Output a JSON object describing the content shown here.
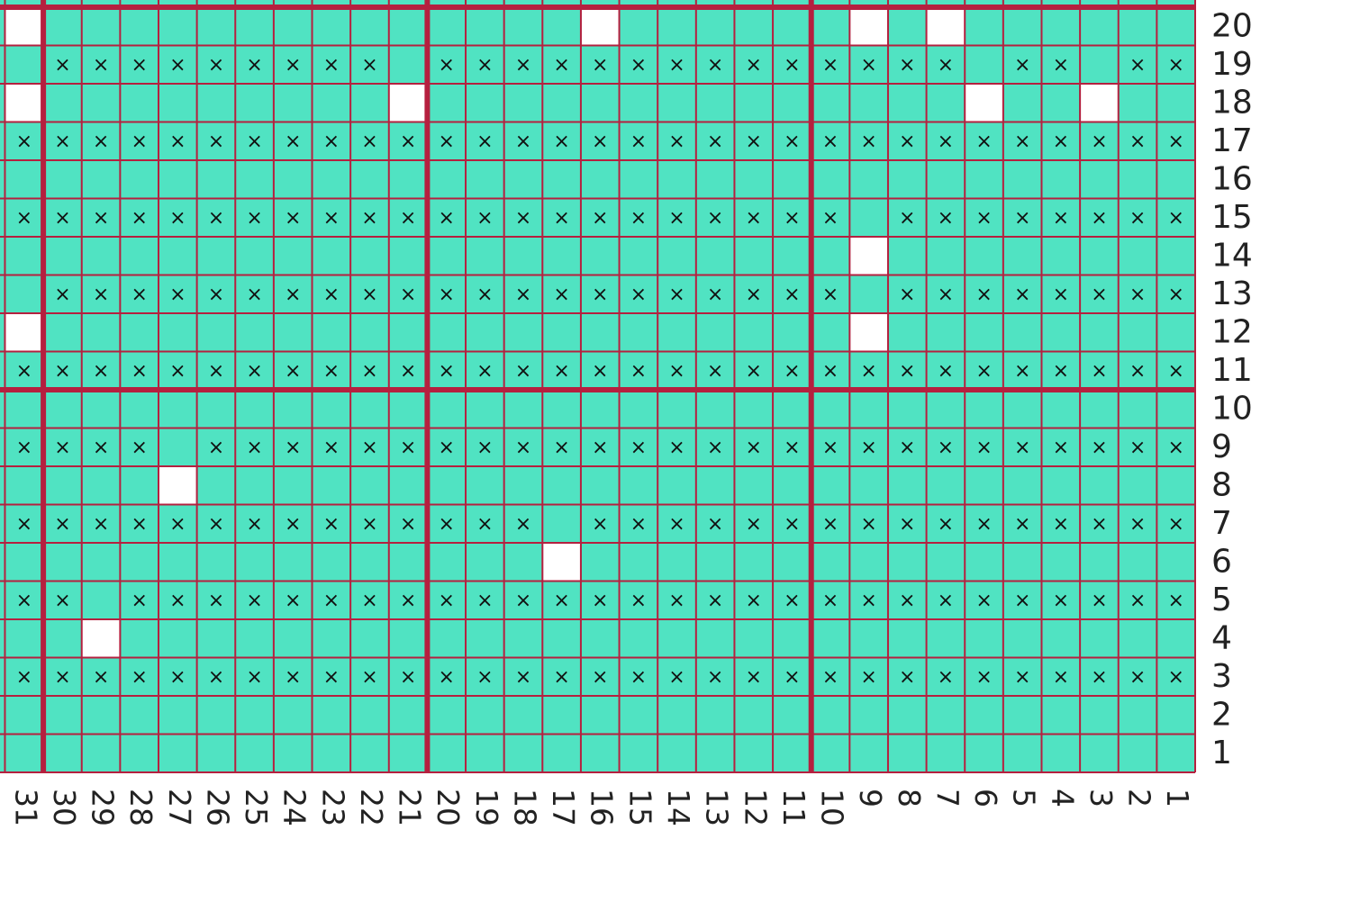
{
  "cross_symbol": "×",
  "columns": [
    "31",
    "30",
    "29",
    "28",
    "27",
    "26",
    "25",
    "24",
    "23",
    "22",
    "21",
    "20",
    "19",
    "18",
    "17",
    "16",
    "15",
    "14",
    "13",
    "12",
    "11",
    "10",
    "9",
    "8",
    "7",
    "6",
    "5",
    "4",
    "3",
    "2",
    "1"
  ],
  "rows": [
    {
      "label": "20",
      "blank_columns": [
        31,
        16,
        9,
        7
      ]
    },
    {
      "label": "19",
      "cross_columns": [
        30,
        29,
        28,
        27,
        26,
        25,
        24,
        23,
        22,
        20,
        19,
        18,
        17,
        16,
        15,
        14,
        13,
        12,
        11,
        10,
        9,
        8,
        7,
        5,
        4,
        2,
        1
      ]
    },
    {
      "label": "18",
      "blank_columns": [
        31,
        21,
        6,
        3
      ]
    },
    {
      "label": "17",
      "cross_columns": [
        31,
        30,
        29,
        28,
        27,
        26,
        25,
        24,
        23,
        22,
        21,
        20,
        19,
        18,
        17,
        16,
        15,
        14,
        13,
        12,
        11,
        10,
        9,
        8,
        7,
        6,
        5,
        4,
        3,
        2,
        1
      ]
    },
    {
      "label": "16"
    },
    {
      "label": "15",
      "cross_columns": [
        31,
        30,
        29,
        28,
        27,
        26,
        25,
        24,
        23,
        22,
        21,
        20,
        19,
        18,
        17,
        16,
        15,
        14,
        13,
        12,
        11,
        10,
        8,
        7,
        6,
        5,
        4,
        3,
        2,
        1
      ]
    },
    {
      "label": "14",
      "blank_columns": [
        9
      ]
    },
    {
      "label": "13",
      "cross_columns": [
        30,
        29,
        28,
        27,
        26,
        25,
        24,
        23,
        22,
        21,
        20,
        19,
        18,
        17,
        16,
        15,
        14,
        13,
        12,
        11,
        10,
        8,
        7,
        6,
        5,
        4,
        3,
        2,
        1
      ]
    },
    {
      "label": "12",
      "blank_columns": [
        31,
        9
      ]
    },
    {
      "label": "11",
      "cross_columns": [
        31,
        30,
        29,
        28,
        27,
        26,
        25,
        24,
        23,
        22,
        21,
        20,
        19,
        18,
        17,
        16,
        15,
        14,
        13,
        12,
        11,
        10,
        9,
        8,
        7,
        6,
        5,
        4,
        3,
        2,
        1
      ]
    },
    {
      "label": "10"
    },
    {
      "label": "9",
      "cross_columns": [
        31,
        30,
        29,
        28,
        26,
        25,
        24,
        23,
        22,
        21,
        20,
        19,
        18,
        17,
        16,
        15,
        14,
        13,
        12,
        11,
        10,
        9,
        8,
        7,
        6,
        5,
        4,
        3,
        2,
        1
      ]
    },
    {
      "label": "8",
      "blank_columns": [
        27
      ]
    },
    {
      "label": "7",
      "cross_columns": [
        31,
        30,
        29,
        28,
        27,
        26,
        25,
        24,
        23,
        22,
        21,
        20,
        19,
        18,
        16,
        15,
        14,
        13,
        12,
        11,
        10,
        9,
        8,
        7,
        6,
        5,
        4,
        3,
        2,
        1
      ]
    },
    {
      "label": "6",
      "blank_columns": [
        17
      ]
    },
    {
      "label": "5",
      "cross_columns": [
        31,
        30,
        28,
        27,
        26,
        25,
        24,
        23,
        22,
        21,
        20,
        19,
        18,
        17,
        16,
        15,
        14,
        13,
        12,
        11,
        10,
        9,
        8,
        7,
        6,
        5,
        4,
        3,
        2,
        1
      ]
    },
    {
      "label": "4",
      "blank_columns": [
        29
      ]
    },
    {
      "label": "3",
      "cross_columns": [
        31,
        30,
        29,
        28,
        27,
        26,
        25,
        24,
        23,
        22,
        21,
        20,
        19,
        18,
        17,
        16,
        15,
        14,
        13,
        12,
        11,
        10,
        9,
        8,
        7,
        6,
        5,
        4,
        3,
        2,
        1
      ]
    },
    {
      "label": "2"
    },
    {
      "label": "1"
    }
  ]
}
